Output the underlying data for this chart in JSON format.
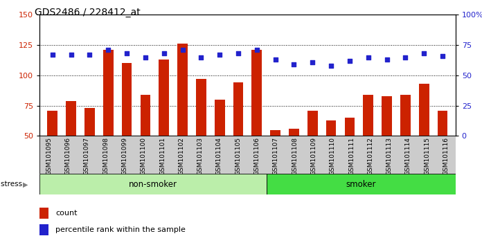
{
  "title": "GDS2486 / 228412_at",
  "samples": [
    "GSM101095",
    "GSM101096",
    "GSM101097",
    "GSM101098",
    "GSM101099",
    "GSM101100",
    "GSM101101",
    "GSM101102",
    "GSM101103",
    "GSM101104",
    "GSM101105",
    "GSM101106",
    "GSM101107",
    "GSM101108",
    "GSM101109",
    "GSM101110",
    "GSM101111",
    "GSM101112",
    "GSM101113",
    "GSM101114",
    "GSM101115",
    "GSM101116"
  ],
  "bar_values": [
    71,
    79,
    73,
    121,
    110,
    84,
    113,
    126,
    97,
    80,
    94,
    121,
    55,
    56,
    71,
    63,
    65,
    84,
    83,
    84,
    93,
    71
  ],
  "pct_values": [
    67,
    67,
    67,
    71,
    68,
    65,
    68,
    71,
    65,
    67,
    68,
    71,
    63,
    59,
    61,
    58,
    62,
    65,
    63,
    65,
    68,
    66
  ],
  "non_smoker_count": 12,
  "smoker_count": 10,
  "bar_color": "#cc2200",
  "dot_color": "#2222cc",
  "non_smoker_color": "#bbeeaa",
  "smoker_color": "#44dd44",
  "xtick_bg_color": "#cccccc",
  "stress_label": "stress",
  "non_smoker_label": "non-smoker",
  "smoker_label": "smoker",
  "legend_count": "count",
  "legend_pct": "percentile rank within the sample"
}
